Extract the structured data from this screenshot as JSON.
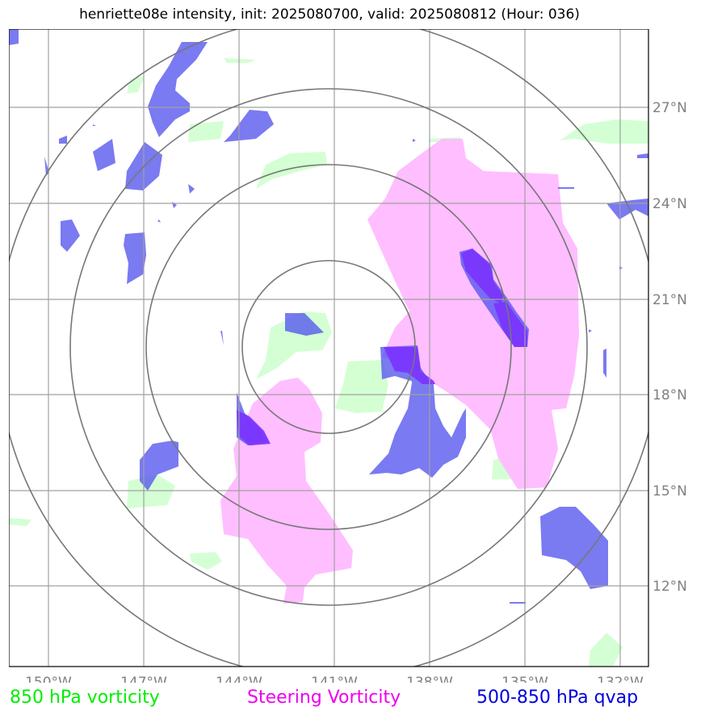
{
  "header": {
    "title": "henriette08e intensity, init: 2025080700, valid: 2025080812 (Hour: 036)"
  },
  "map": {
    "lon_labels": [
      "150°W",
      "147°W",
      "144°W",
      "141°W",
      "138°W",
      "135°W",
      "132°W"
    ],
    "lat_labels": [
      "27°N",
      "24°N",
      "21°N",
      "18°N",
      "15°N",
      "12°N"
    ],
    "center": {
      "lon": -141.2,
      "lat": 19.4
    },
    "range_rings": 4,
    "colors": {
      "vorticity_850": "#ccffcc",
      "steering_vorticity": "#ffaaff",
      "qvap_500_850": "#5050ee",
      "overlap": "#7a33ff",
      "grid": "#a0a0a0",
      "ring": "#777777"
    }
  },
  "legend": {
    "vorticity": {
      "label": "850 hPa vorticity",
      "color": "#00ee00"
    },
    "steering": {
      "label": "Steering Vorticity",
      "color": "#ee00ee"
    },
    "qvap": {
      "label": "500-850 hPa qvap",
      "color": "#0000dd"
    }
  }
}
